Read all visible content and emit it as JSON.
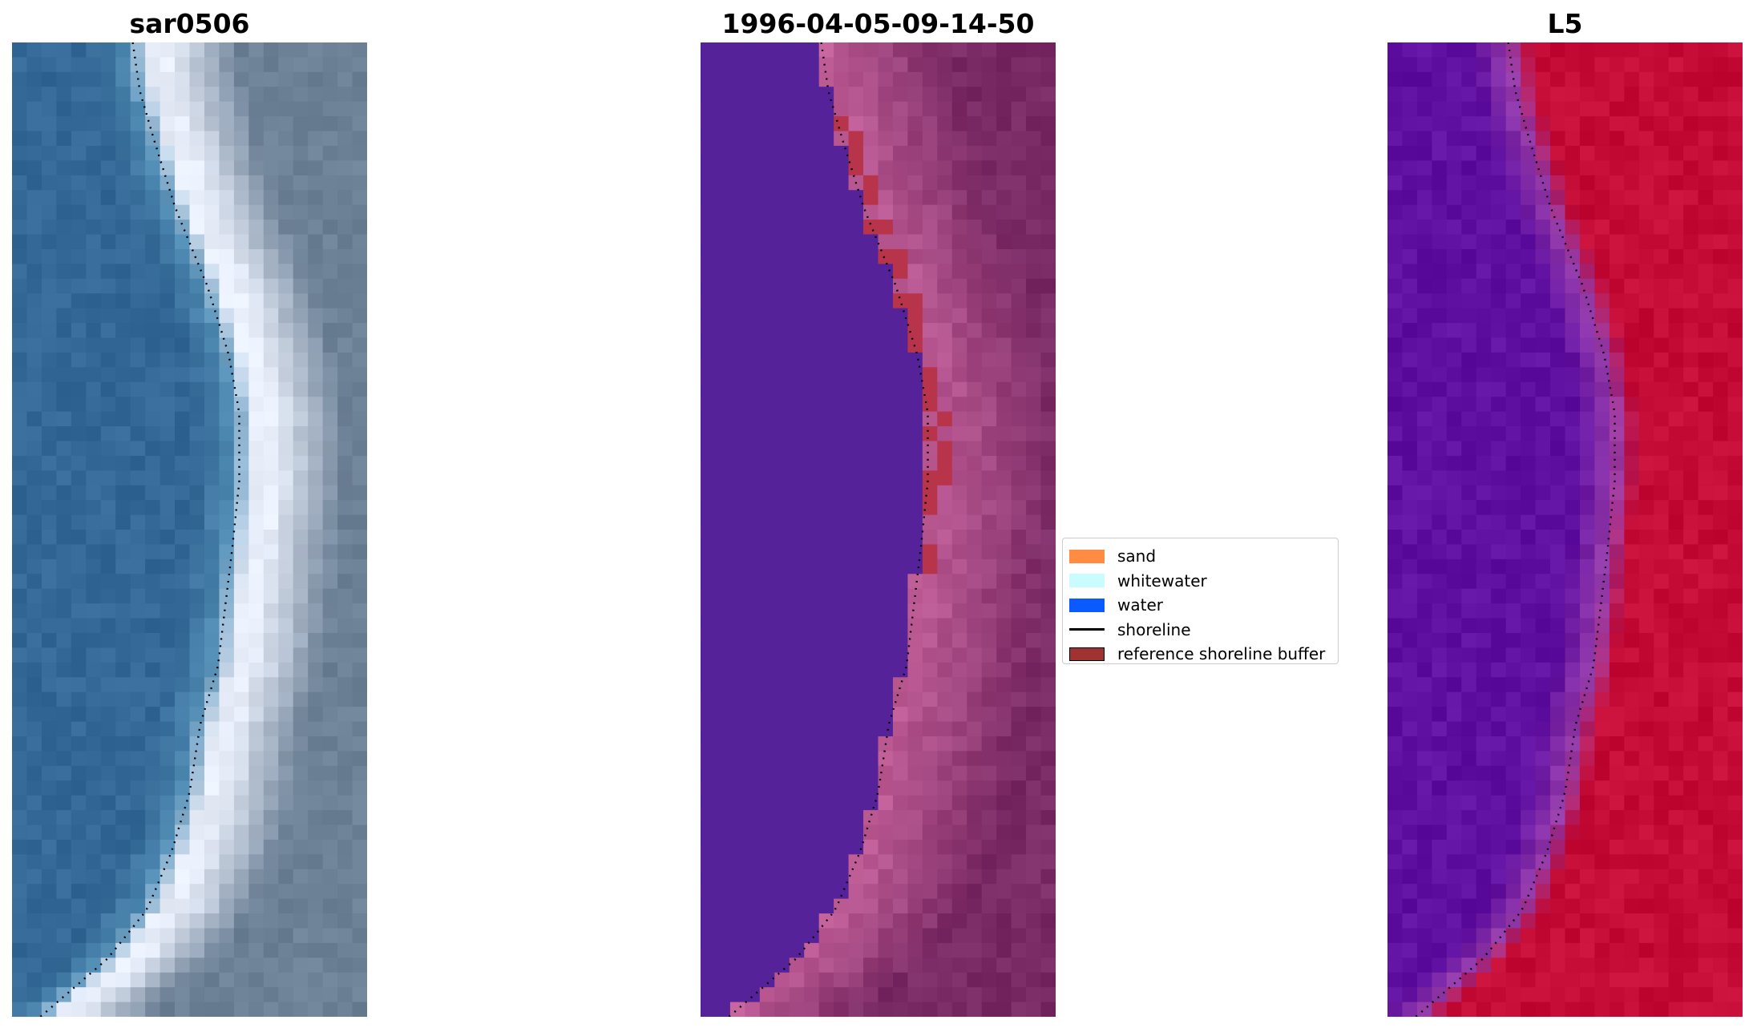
{
  "panels": [
    {
      "title": "sar0506",
      "style": "rgb"
    },
    {
      "title": "1996-04-05-09-14-50",
      "style": "classified"
    },
    {
      "title": "L5",
      "style": "mndwi"
    }
  ],
  "legend": {
    "items": [
      {
        "label": "sand",
        "color": "#ff8c42",
        "kind": "patch"
      },
      {
        "label": "whitewater",
        "color": "#c8fcff",
        "kind": "patch"
      },
      {
        "label": "water",
        "color": "#0a5aff",
        "kind": "patch"
      },
      {
        "label": "shoreline",
        "color": "#000000",
        "kind": "line"
      },
      {
        "label": "reference shoreline buffer",
        "color": "#a03232",
        "kind": "patch",
        "edge": "#000000"
      }
    ]
  }
}
